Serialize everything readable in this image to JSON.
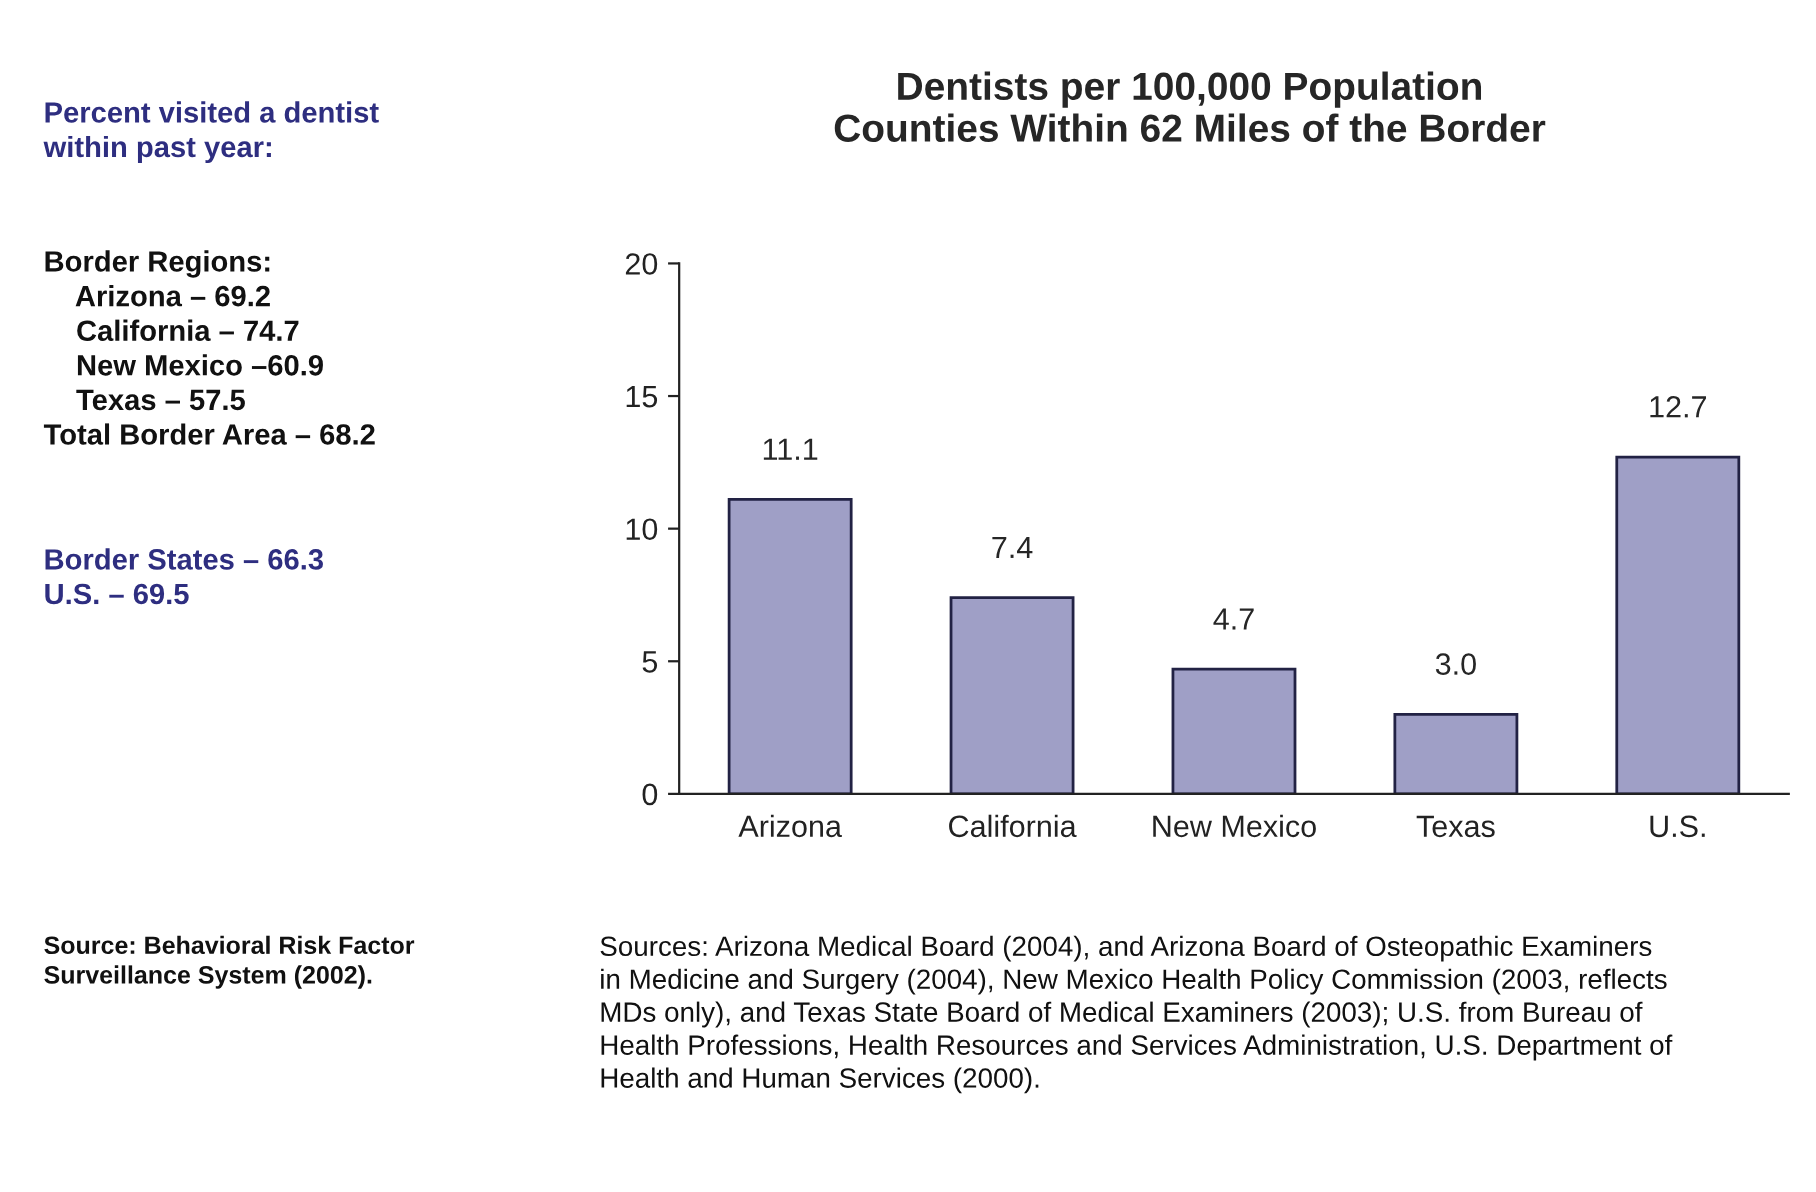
{
  "chart_data": {
    "type": "bar",
    "title": "Dentists per 100,000 Population\nCounties Within 62 Miles of the Border",
    "categories": [
      "Arizona",
      "California",
      "New Mexico",
      "Texas",
      "U.S."
    ],
    "series": [
      {
        "color": "#9999cc",
        "values": [
          11.1,
          7.4,
          4.7,
          3.0,
          12.7
        ]
      }
    ],
    "value_labels": [
      "11.1",
      "7.4",
      "4.7",
      "3.0",
      "12.7"
    ],
    "ylim": [
      0,
      20
    ],
    "yticks": [
      0,
      5,
      10,
      15,
      20
    ],
    "grid": false,
    "legend": false,
    "annotations": [
      "Percent visited a dentist\nwithin past year:",
      "Border Regions:\n    Arizona – 69.2\n    California – 74.7\n    New Mexico –60.9\n    Texas – 57.5\nTotal Border Area – 68.2",
      "Border States – 66.3\nU.S. – 69.5",
      "Source: Behavioral Risk Factor\nSurveillance System (2002).",
      "Sources: Arizona Medical Board (2004), and Arizona Board of Osteopathic Examiners\nin Medicine and Surgery (2004), New Mexico Health Policy Commission (2003, reflects\nMDs only), and Texas State Board of Medical Examiners (2003); U.S. from Bureau of\nHealth Professions, Health Resources and Services Administration, U.S. Department of\nHealth and Human Services (2000)."
    ]
  }
}
